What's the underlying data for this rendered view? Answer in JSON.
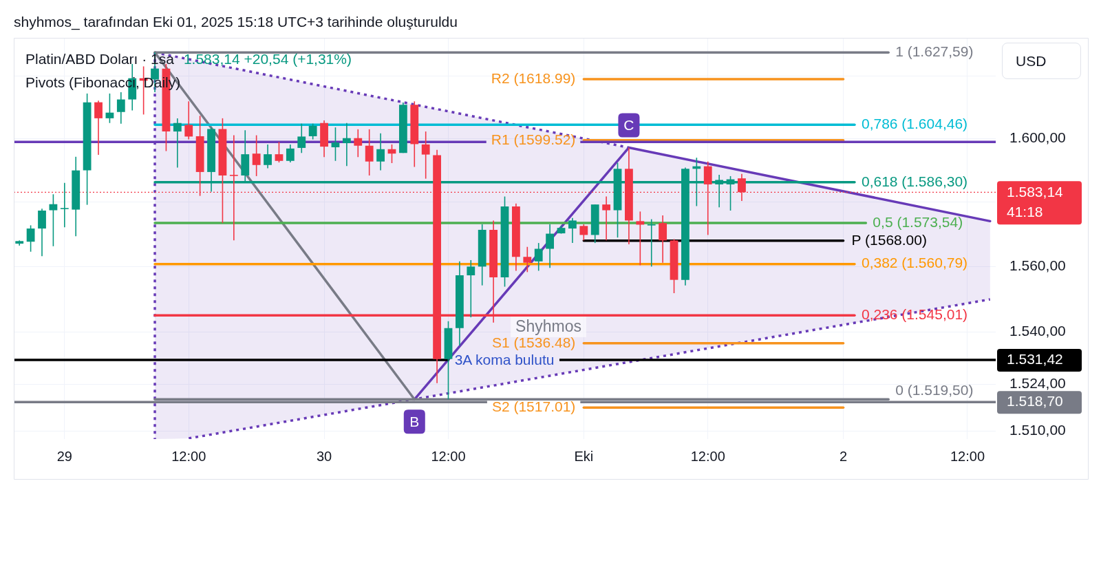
{
  "chart_data": {
    "type": "candlestick",
    "title": "shyhmos_ tarafından Eki 01, 2025 15:18 UTC+3 tarihinde oluşturuldu",
    "subtitle": "Platin/ABD Doları · 1sa",
    "categories": [
      null,
      null,
      null,
      null,
      "29",
      null,
      null,
      null,
      null,
      null,
      null,
      null,
      null,
      null,
      null,
      "12:00",
      null,
      null,
      null,
      null,
      null,
      null,
      null,
      null,
      null,
      null,
      null,
      "30",
      null,
      null,
      null,
      null,
      null,
      null,
      null,
      null,
      null,
      null,
      "12:00",
      null,
      null,
      null,
      null,
      null,
      null,
      null,
      null,
      null,
      null,
      null,
      "Eki",
      null,
      null,
      null,
      null,
      null,
      null,
      null,
      null,
      null,
      null,
      "12:00",
      null,
      null,
      null,
      null,
      null,
      null,
      null,
      null,
      null,
      null,
      null,
      "2",
      null,
      null,
      null,
      null,
      null,
      null,
      null,
      null,
      null,
      null,
      "12:00",
      null,
      null
    ],
    "ohlc": [
      [
        1567.1,
        1568.1,
        1566.5,
        1567.9
      ],
      [
        1567.7,
        1572.8,
        1564.6,
        1571.8
      ],
      [
        1571.8,
        1578.0,
        1563.2,
        1577.4
      ],
      [
        1577.5,
        1582.5,
        1566.3,
        1579.4
      ],
      [
        1578.0,
        1586.1,
        1572.2,
        1578.2
      ],
      [
        1577.7,
        1594.3,
        1569.4,
        1590.0
      ],
      [
        1590.0,
        1614.4,
        1579.2,
        1611.6
      ],
      [
        1611.6,
        1612.1,
        1594.9,
        1606.5
      ],
      [
        1606.5,
        1614.4,
        1605.0,
        1608.3
      ],
      [
        1608.5,
        1614.8,
        1604.8,
        1612.5
      ],
      [
        1612.5,
        1623.9,
        1609.0,
        1619.3
      ],
      [
        1619.3,
        1623.1,
        1607.7,
        1618.5
      ],
      [
        1618.9,
        1627.59,
        1614.8,
        1622.4
      ],
      [
        1622.4,
        1623.9,
        1596.1,
        1602.3
      ],
      [
        1602.3,
        1606.5,
        1590.9,
        1605.0
      ],
      [
        1604.4,
        1611.9,
        1599.8,
        1600.7
      ],
      [
        1600.8,
        1607.3,
        1582.0,
        1589.5
      ],
      [
        1589.5,
        1603.6,
        1583.3,
        1603.1
      ],
      [
        1603.1,
        1606.5,
        1573.5,
        1588.4
      ],
      [
        1588.6,
        1601.1,
        1568.1,
        1588.3
      ],
      [
        1588.4,
        1602.7,
        1586.1,
        1595.1
      ],
      [
        1595.3,
        1601.1,
        1588.2,
        1591.7
      ],
      [
        1591.7,
        1598.2,
        1590.7,
        1595.1
      ],
      [
        1595.1,
        1599.0,
        1592.5,
        1593.0
      ],
      [
        1593.0,
        1598.2,
        1592.5,
        1596.9
      ],
      [
        1597.1,
        1604.8,
        1595.5,
        1600.7
      ],
      [
        1600.8,
        1604.8,
        1599.8,
        1604.1
      ],
      [
        1605.0,
        1605.8,
        1594.2,
        1597.5
      ],
      [
        1597.3,
        1603.6,
        1593.0,
        1598.8
      ],
      [
        1598.6,
        1605.0,
        1591.4,
        1600.2
      ],
      [
        1600.2,
        1603.0,
        1594.2,
        1597.8
      ],
      [
        1597.8,
        1603.0,
        1588.4,
        1592.8
      ],
      [
        1592.8,
        1601.7,
        1590.0,
        1596.7
      ],
      [
        1596.7,
        1598.2,
        1592.3,
        1595.3
      ],
      [
        1595.5,
        1611.5,
        1595.5,
        1610.8
      ],
      [
        1610.8,
        1611.9,
        1591.1,
        1598.3
      ],
      [
        1598.2,
        1602.3,
        1587.4,
        1595.0
      ],
      [
        1594.8,
        1596.5,
        1524.4,
        1531.7
      ],
      [
        1531.7,
        1543.2,
        1519.5,
        1541.1
      ],
      [
        1541.1,
        1561.6,
        1535.8,
        1557.3
      ],
      [
        1557.3,
        1562.0,
        1544.4,
        1560.0
      ],
      [
        1560.0,
        1573.1,
        1554.2,
        1571.4
      ],
      [
        1571.4,
        1574.3,
        1542.8,
        1556.7
      ],
      [
        1556.7,
        1581.8,
        1553.8,
        1578.7
      ],
      [
        1578.7,
        1579.6,
        1558.7,
        1563.0
      ],
      [
        1563.0,
        1566.1,
        1558.3,
        1561.2
      ],
      [
        1561.6,
        1567.3,
        1558.7,
        1565.5
      ],
      [
        1565.5,
        1573.1,
        1559.6,
        1570.2
      ],
      [
        1570.3,
        1572.7,
        1570.2,
        1572.0
      ],
      [
        1571.8,
        1575.1,
        1567.3,
        1574.3
      ],
      [
        1572.6,
        1573.1,
        1568.1,
        1569.8
      ],
      [
        1569.8,
        1579.3,
        1567.3,
        1579.3
      ],
      [
        1579.3,
        1581.8,
        1568.1,
        1577.5
      ],
      [
        1577.5,
        1592.4,
        1569.0,
        1590.5
      ],
      [
        1590.5,
        1597.2,
        1566.9,
        1574.3
      ],
      [
        1574.1,
        1577.1,
        1560.4,
        1573.0
      ],
      [
        1572.9,
        1574.7,
        1560.0,
        1573.1
      ],
      [
        1573.5,
        1575.9,
        1561.2,
        1568.1
      ],
      [
        1568.1,
        1568.5,
        1551.8,
        1555.9
      ],
      [
        1555.9,
        1590.9,
        1554.2,
        1590.5
      ],
      [
        1590.5,
        1594.0,
        1578.8,
        1591.3
      ],
      [
        1591.3,
        1592.8,
        1569.8,
        1585.6
      ],
      [
        1585.6,
        1588.6,
        1578.4,
        1587.0
      ],
      [
        1585.6,
        1588.2,
        1577.4,
        1587.2
      ],
      [
        1587.5,
        1588.9,
        1580.4,
        1583.14
      ],
      null,
      null,
      null,
      null,
      null,
      null,
      null,
      null,
      null,
      null,
      null,
      null,
      null,
      null,
      null,
      null,
      null,
      null,
      null,
      null,
      null,
      null
    ],
    "log": true,
    "ylim": [
      1507.6,
      1632.3
    ],
    "yticks": [
      {
        "value": 1620,
        "label": null
      },
      {
        "value": 1600,
        "label": "1.600,00"
      },
      {
        "value": 1580,
        "label": null
      },
      {
        "value": 1560,
        "label": "1.560,00"
      },
      {
        "value": 1540,
        "label": "1.540,00"
      },
      {
        "value": 1524,
        "label": "1.524,00"
      },
      {
        "value": 1510,
        "label": "1.510,00"
      }
    ],
    "grid": true,
    "series": [
      {
        "type": "line",
        "name": "1 (1.627,59)",
        "color": "#787b86",
        "values": [
          null,
          null,
          null,
          null,
          null,
          null,
          null,
          null,
          null,
          null,
          null,
          null,
          1627.59,
          null,
          null,
          null,
          null,
          null,
          null,
          null,
          null,
          null,
          null,
          null,
          null,
          null,
          null,
          null,
          null,
          null,
          null,
          null,
          null,
          null,
          null,
          null,
          null,
          null,
          null,
          null,
          null,
          null,
          null,
          null,
          null,
          null,
          null,
          null,
          null,
          null,
          null,
          null,
          null,
          null,
          null,
          null,
          null,
          null,
          null,
          null,
          null,
          null,
          null,
          null,
          null,
          null,
          null,
          null,
          null,
          null,
          null,
          null,
          null,
          null,
          null,
          null,
          null,
          1627.59,
          null,
          null,
          null,
          null,
          null,
          null,
          null,
          null,
          null
        ]
      },
      {
        "type": "line",
        "name": "0,786 (1.604,46)",
        "color": "#00bcd4",
        "values": [
          null,
          null,
          null,
          null,
          null,
          null,
          null,
          null,
          null,
          null,
          null,
          null,
          1604.46,
          null,
          null,
          null,
          null,
          null,
          null,
          null,
          null,
          null,
          null,
          null,
          null,
          null,
          null,
          null,
          null,
          null,
          null,
          null,
          null,
          null,
          null,
          null,
          null,
          null,
          null,
          null,
          null,
          null,
          null,
          null,
          null,
          null,
          null,
          null,
          null,
          null,
          null,
          null,
          null,
          null,
          null,
          null,
          null,
          null,
          null,
          null,
          null,
          null,
          null,
          null,
          null,
          null,
          null,
          null,
          null,
          null,
          null,
          null,
          null,
          null,
          1604.46,
          null,
          null,
          null,
          null,
          null,
          null,
          null,
          null,
          null,
          null,
          null,
          null
        ]
      },
      {
        "type": "line",
        "name": "0,618 (1.586,30)",
        "color": "#089981",
        "values": [
          null,
          null,
          null,
          null,
          null,
          null,
          null,
          null,
          null,
          null,
          null,
          null,
          1586.3,
          null,
          null,
          null,
          null,
          null,
          null,
          null,
          null,
          null,
          null,
          null,
          null,
          null,
          null,
          null,
          null,
          null,
          null,
          null,
          null,
          null,
          null,
          null,
          null,
          null,
          null,
          null,
          null,
          null,
          null,
          null,
          null,
          null,
          null,
          null,
          null,
          null,
          null,
          null,
          null,
          null,
          null,
          null,
          null,
          null,
          null,
          null,
          null,
          null,
          null,
          null,
          null,
          null,
          null,
          null,
          null,
          null,
          null,
          null,
          null,
          null,
          1586.3,
          null,
          null,
          null,
          null,
          null,
          null,
          null,
          null,
          null,
          null,
          null,
          null
        ]
      },
      {
        "type": "line",
        "name": "0,5 (1.573,54)",
        "color": "#4caf50",
        "values": [
          null,
          null,
          null,
          null,
          null,
          null,
          null,
          null,
          null,
          null,
          null,
          null,
          1573.54,
          null,
          null,
          null,
          null,
          null,
          null,
          null,
          null,
          null,
          null,
          null,
          null,
          null,
          null,
          null,
          null,
          null,
          null,
          null,
          null,
          null,
          null,
          null,
          null,
          null,
          null,
          null,
          null,
          null,
          null,
          null,
          null,
          null,
          null,
          null,
          null,
          null,
          null,
          null,
          null,
          null,
          null,
          null,
          null,
          null,
          null,
          null,
          null,
          null,
          null,
          null,
          null,
          null,
          null,
          null,
          null,
          null,
          null,
          null,
          null,
          null,
          null,
          1573.54,
          null,
          null,
          null,
          null,
          null,
          null,
          null,
          null,
          null,
          null,
          null
        ]
      },
      {
        "type": "line",
        "name": "0,382 (1.560,79)",
        "color": "#ff9800",
        "values": [
          null,
          null,
          null,
          null,
          null,
          null,
          null,
          null,
          null,
          null,
          null,
          null,
          1560.79,
          null,
          null,
          null,
          null,
          null,
          null,
          null,
          null,
          null,
          null,
          null,
          null,
          null,
          null,
          null,
          null,
          null,
          null,
          null,
          null,
          null,
          null,
          null,
          null,
          null,
          null,
          null,
          null,
          null,
          null,
          null,
          null,
          null,
          null,
          null,
          null,
          null,
          null,
          null,
          null,
          null,
          null,
          null,
          null,
          null,
          null,
          null,
          null,
          null,
          null,
          null,
          null,
          null,
          null,
          null,
          null,
          null,
          null,
          null,
          null,
          null,
          1560.79,
          null,
          null,
          null,
          null,
          null,
          null,
          null,
          null,
          null,
          null,
          null,
          null
        ]
      },
      {
        "type": "line",
        "name": "0,236 (1.545,01)",
        "color": "#f23645",
        "values": [
          null,
          null,
          null,
          null,
          null,
          null,
          null,
          null,
          null,
          null,
          null,
          null,
          1545.01,
          null,
          null,
          null,
          null,
          null,
          null,
          null,
          null,
          null,
          null,
          null,
          null,
          null,
          null,
          null,
          null,
          null,
          null,
          null,
          null,
          null,
          null,
          null,
          null,
          null,
          null,
          null,
          null,
          null,
          null,
          null,
          null,
          null,
          null,
          null,
          null,
          null,
          null,
          null,
          null,
          null,
          null,
          null,
          null,
          null,
          null,
          null,
          null,
          null,
          null,
          null,
          null,
          null,
          null,
          null,
          null,
          null,
          null,
          null,
          null,
          null,
          1545.01,
          null,
          null,
          null,
          null,
          null,
          null,
          null,
          null,
          null,
          null,
          null,
          null
        ]
      },
      {
        "type": "line",
        "name": "0 (1.519,50)",
        "color": "#787b86",
        "values": [
          null,
          null,
          null,
          null,
          null,
          null,
          null,
          null,
          null,
          null,
          null,
          null,
          1519.5,
          null,
          null,
          null,
          null,
          null,
          null,
          null,
          null,
          null,
          null,
          null,
          null,
          null,
          null,
          null,
          null,
          null,
          null,
          null,
          null,
          null,
          null,
          null,
          null,
          null,
          null,
          null,
          null,
          null,
          null,
          null,
          null,
          null,
          null,
          null,
          null,
          null,
          null,
          null,
          null,
          null,
          null,
          null,
          null,
          null,
          null,
          null,
          null,
          null,
          null,
          null,
          null,
          null,
          null,
          null,
          null,
          null,
          null,
          null,
          null,
          null,
          null,
          null,
          null,
          1519.5,
          null,
          null,
          null,
          null,
          null,
          null,
          null,
          null,
          null
        ]
      },
      {
        "type": "line",
        "name": "R2 (1618.99)",
        "color": "#f7931e",
        "values": [
          null,
          null,
          null,
          null,
          null,
          null,
          null,
          null,
          null,
          null,
          null,
          null,
          null,
          null,
          null,
          null,
          null,
          null,
          null,
          null,
          null,
          null,
          null,
          null,
          null,
          null,
          null,
          null,
          null,
          null,
          null,
          null,
          null,
          null,
          null,
          null,
          null,
          null,
          null,
          null,
          null,
          null,
          null,
          null,
          null,
          null,
          null,
          null,
          null,
          null,
          1618.99,
          null,
          null,
          null,
          null,
          null,
          null,
          null,
          null,
          null,
          null,
          null,
          null,
          null,
          null,
          null,
          null,
          null,
          null,
          null,
          null,
          null,
          null,
          1618.99,
          null,
          null,
          null,
          null,
          null,
          null,
          null,
          null,
          null,
          null,
          null,
          null,
          null
        ]
      },
      {
        "type": "line",
        "name": "R1 (1599.52)",
        "color": "#f7931e",
        "values": [
          null,
          null,
          null,
          null,
          null,
          null,
          null,
          null,
          null,
          null,
          null,
          null,
          null,
          null,
          null,
          null,
          null,
          null,
          null,
          null,
          null,
          null,
          null,
          null,
          null,
          null,
          null,
          null,
          null,
          null,
          null,
          null,
          null,
          null,
          null,
          null,
          null,
          null,
          null,
          null,
          null,
          null,
          null,
          null,
          null,
          null,
          null,
          null,
          null,
          null,
          1599.52,
          null,
          null,
          null,
          null,
          null,
          null,
          null,
          null,
          null,
          null,
          null,
          null,
          null,
          null,
          null,
          null,
          null,
          null,
          null,
          null,
          null,
          null,
          1599.52,
          null,
          null,
          null,
          null,
          null,
          null,
          null,
          null,
          null,
          null,
          null,
          null,
          null
        ]
      },
      {
        "type": "line",
        "name": "P (1568.00)",
        "color": "#000000",
        "values": [
          null,
          null,
          null,
          null,
          null,
          null,
          null,
          null,
          null,
          null,
          null,
          null,
          null,
          null,
          null,
          null,
          null,
          null,
          null,
          null,
          null,
          null,
          null,
          null,
          null,
          null,
          null,
          null,
          null,
          null,
          null,
          null,
          null,
          null,
          null,
          null,
          null,
          null,
          null,
          null,
          null,
          null,
          null,
          null,
          null,
          null,
          null,
          null,
          null,
          null,
          1568.0,
          null,
          null,
          null,
          null,
          null,
          null,
          null,
          null,
          null,
          null,
          null,
          null,
          null,
          null,
          null,
          null,
          null,
          null,
          null,
          null,
          null,
          null,
          1568.0,
          null,
          null,
          null,
          null,
          null,
          null,
          null,
          null,
          null,
          null,
          null,
          null,
          null
        ]
      },
      {
        "type": "line",
        "name": "S1 (1536.48)",
        "color": "#f7931e",
        "values": [
          null,
          null,
          null,
          null,
          null,
          null,
          null,
          null,
          null,
          null,
          null,
          null,
          null,
          null,
          null,
          null,
          null,
          null,
          null,
          null,
          null,
          null,
          null,
          null,
          null,
          null,
          null,
          null,
          null,
          null,
          null,
          null,
          null,
          null,
          null,
          null,
          null,
          null,
          null,
          null,
          null,
          null,
          null,
          null,
          null,
          null,
          null,
          null,
          null,
          null,
          1536.48,
          null,
          null,
          null,
          null,
          null,
          null,
          null,
          null,
          null,
          null,
          null,
          null,
          null,
          null,
          null,
          null,
          null,
          null,
          null,
          null,
          null,
          null,
          1536.48,
          null,
          null,
          null,
          null,
          null,
          null,
          null,
          null,
          null,
          null,
          null,
          null,
          null
        ]
      },
      {
        "type": "line",
        "name": "S2 (1517.01)",
        "color": "#f7931e",
        "values": [
          null,
          null,
          null,
          null,
          null,
          null,
          null,
          null,
          null,
          null,
          null,
          null,
          null,
          null,
          null,
          null,
          null,
          null,
          null,
          null,
          null,
          null,
          null,
          null,
          null,
          null,
          null,
          null,
          null,
          null,
          null,
          null,
          null,
          null,
          null,
          null,
          null,
          null,
          null,
          null,
          null,
          null,
          null,
          null,
          null,
          null,
          null,
          null,
          null,
          null,
          1517.01,
          null,
          null,
          null,
          null,
          null,
          null,
          null,
          null,
          null,
          null,
          null,
          null,
          null,
          null,
          null,
          null,
          null,
          null,
          null,
          null,
          null,
          null,
          1517.01,
          null,
          null,
          null,
          null,
          null,
          null,
          null,
          null,
          null,
          null,
          null,
          null,
          null
        ]
      },
      {
        "type": "line",
        "color": "#787b86",
        "values": [
          null,
          null,
          null,
          null,
          null,
          null,
          null,
          null,
          null,
          null,
          null,
          null,
          1627.59,
          null,
          null,
          null,
          null,
          null,
          null,
          null,
          null,
          null,
          null,
          null,
          null,
          null,
          null,
          null,
          null,
          null,
          null,
          null,
          null,
          null,
          null,
          1519.5,
          null,
          null,
          null,
          null,
          null,
          null,
          null,
          null,
          null,
          null,
          null,
          null,
          null,
          null,
          null,
          null,
          null,
          null,
          null,
          null,
          null,
          null,
          null,
          null,
          null,
          null,
          null,
          null,
          null,
          null,
          null,
          null,
          null,
          null,
          null,
          null,
          null,
          null,
          null,
          null,
          null,
          null,
          null,
          null,
          null,
          null,
          null,
          null,
          null,
          null,
          null
        ]
      },
      {
        "type": "line",
        "color": "#673ab7",
        "values": [
          null,
          null,
          null,
          null,
          null,
          null,
          null,
          null,
          null,
          null,
          null,
          null,
          null,
          null,
          null,
          null,
          null,
          null,
          null,
          null,
          null,
          null,
          null,
          null,
          null,
          null,
          null,
          null,
          null,
          null,
          null,
          null,
          null,
          null,
          null,
          1519.5,
          null,
          null,
          null,
          null,
          null,
          null,
          null,
          null,
          null,
          null,
          null,
          null,
          null,
          null,
          null,
          null,
          null,
          null,
          1597.2,
          null,
          null,
          null,
          null,
          null,
          null,
          null,
          null,
          null,
          null,
          null,
          null,
          null,
          null,
          null,
          null,
          null,
          null,
          null,
          null,
          null,
          null,
          null,
          null,
          null,
          null,
          null,
          null,
          null,
          null,
          null,
          1574.1
        ],
        "value_labels": [
          null,
          null,
          null,
          null,
          null,
          null,
          null,
          null,
          null,
          null,
          null,
          null,
          null,
          null,
          null,
          null,
          null,
          null,
          null,
          null,
          null,
          null,
          null,
          null,
          null,
          null,
          null,
          null,
          null,
          null,
          null,
          null,
          null,
          null,
          null,
          "B",
          null,
          null,
          null,
          null,
          null,
          null,
          null,
          null,
          null,
          null,
          null,
          null,
          null,
          null,
          null,
          null,
          null,
          null,
          "C",
          null,
          null,
          null,
          null,
          null,
          null,
          null,
          null,
          null,
          null,
          null,
          null,
          null,
          null,
          null,
          null,
          null,
          null,
          null,
          null,
          null,
          null,
          null,
          null,
          null,
          null,
          null,
          null,
          null,
          null,
          null,
          null
        ]
      },
      {
        "type": "line",
        "color": "#673ab7",
        "line_style": "dotted",
        "values": [
          null,
          null,
          null,
          null,
          null,
          null,
          null,
          null,
          null,
          null,
          null,
          null,
          1627.59,
          null,
          null,
          null,
          null,
          null,
          null,
          null,
          null,
          null,
          null,
          null,
          null,
          null,
          null,
          null,
          null,
          null,
          null,
          null,
          null,
          null,
          null,
          null,
          null,
          null,
          null,
          null,
          null,
          null,
          null,
          null,
          null,
          null,
          null,
          null,
          null,
          null,
          null,
          null,
          null,
          null,
          1597.2,
          null,
          null,
          null,
          null,
          null,
          null,
          null,
          null,
          null,
          null,
          null,
          null,
          null,
          null,
          null,
          null,
          null,
          null,
          null,
          null,
          null,
          null,
          null,
          null,
          null,
          null,
          null,
          null,
          null,
          null,
          null,
          null
        ]
      },
      {
        "type": "line",
        "color": "#673ab7",
        "line_style": "dotted",
        "values": [
          null,
          null,
          null,
          null,
          null,
          null,
          null,
          null,
          null,
          null,
          null,
          null,
          null,
          null,
          null,
          1507.8,
          null,
          null,
          null,
          null,
          null,
          null,
          null,
          null,
          null,
          null,
          null,
          null,
          null,
          null,
          null,
          null,
          null,
          null,
          null,
          null,
          null,
          null,
          null,
          null,
          null,
          null,
          null,
          null,
          null,
          null,
          null,
          null,
          null,
          null,
          null,
          null,
          null,
          null,
          null,
          null,
          null,
          null,
          null,
          null,
          null,
          null,
          null,
          null,
          null,
          null,
          null,
          null,
          null,
          null,
          null,
          null,
          null,
          null,
          null,
          null,
          null,
          null,
          null,
          null,
          null,
          null,
          null,
          null,
          null,
          null,
          1549.9
        ],
        "lower": [
          null,
          null,
          null,
          null,
          null,
          null,
          null,
          null,
          null,
          null,
          null,
          null,
          1507.6,
          null,
          null,
          1507.8,
          null,
          null,
          null,
          null,
          null,
          null,
          null,
          null,
          null,
          null,
          null,
          null,
          null,
          null,
          null,
          null,
          null,
          null,
          null,
          null,
          null,
          null,
          null,
          null,
          null,
          null,
          null,
          null,
          null,
          null,
          null,
          null,
          null,
          null,
          null,
          null,
          null,
          null,
          1530.9,
          null,
          null,
          null,
          null,
          null,
          null,
          null,
          null,
          null,
          null,
          null,
          null,
          null,
          null,
          null,
          null,
          null,
          null,
          null,
          null,
          null,
          null,
          null,
          null,
          null,
          null,
          null,
          null,
          null,
          null,
          null,
          1549.9
        ],
        "upper": [
          null,
          null,
          null,
          null,
          null,
          null,
          null,
          null,
          null,
          null,
          null,
          null,
          1627.59,
          null,
          null,
          1625.42,
          null,
          null,
          null,
          null,
          null,
          null,
          null,
          null,
          null,
          null,
          null,
          null,
          null,
          null,
          null,
          null,
          null,
          null,
          null,
          null,
          null,
          null,
          null,
          null,
          null,
          null,
          null,
          null,
          null,
          null,
          null,
          null,
          null,
          null,
          null,
          null,
          null,
          null,
          1597.2,
          null,
          null,
          null,
          null,
          null,
          null,
          null,
          null,
          null,
          null,
          null,
          null,
          null,
          null,
          null,
          null,
          null,
          null,
          null,
          null,
          null,
          null,
          null,
          null,
          null,
          null,
          null,
          null,
          null,
          null,
          null,
          1574.1
        ]
      }
    ],
    "ref_lines": [
      {
        "axis": "y",
        "value": 1599,
        "color": "#673ab7"
      },
      {
        "axis": "y",
        "value": 1583.14,
        "label": "1.583,14",
        "color": "#f23645",
        "line_style": "dotted"
      },
      {
        "axis": "y",
        "value": 1531.42,
        "label": "1.531,42",
        "color": "#000000"
      },
      {
        "axis": "y",
        "value": 1518.7,
        "label": "1.518,70",
        "color": "#787b86"
      }
    ],
    "annotations": [
      "1.583,14 +20,54 (+1,31%)",
      "Pivots (Fibonacci, Daily)",
      "USD",
      "41:18",
      "Shyhmos",
      "3A koma bulutu"
    ]
  }
}
